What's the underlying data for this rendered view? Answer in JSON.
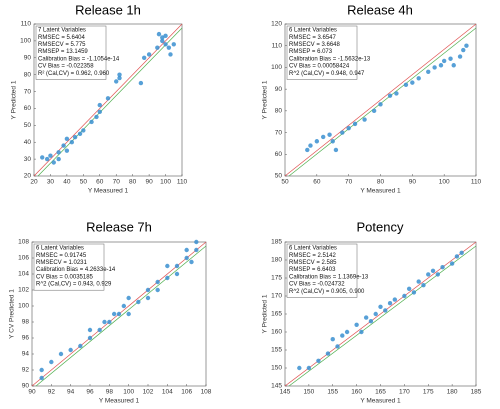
{
  "chart_data": [
    {
      "type": "scatter",
      "title": "Release 1h",
      "x_label": "Y Measured 1",
      "y_label": "Y Predicted 1",
      "color": "#3a8fd0",
      "annotations": [
        "7 Latent Variables",
        "RMSEC = 5.6404",
        "RMSECV = 5.775",
        "RMSEP = 13.1459",
        "Calibration Bias = -1.1054e-14",
        "CV Bias = -0.022358",
        "R² (Cal,CV) = 0.962, 0.960"
      ],
      "x": [
        25,
        28,
        30,
        32,
        35,
        35,
        38,
        40,
        40,
        43,
        45,
        48,
        50,
        55,
        58,
        60,
        60,
        65,
        70,
        72,
        72,
        85,
        87,
        90,
        95,
        96,
        98,
        98,
        100,
        100,
        102,
        103,
        105
      ],
      "values": [
        31,
        30,
        32,
        28,
        34,
        30,
        38,
        35,
        42,
        40,
        43,
        45,
        47,
        52,
        55,
        58,
        62,
        66,
        76,
        78,
        80,
        75,
        90,
        92,
        96,
        104,
        102,
        100,
        103,
        98,
        96,
        92,
        98
      ],
      "xlim": [
        20,
        110
      ],
      "ylim": [
        20,
        110
      ],
      "xticks": [
        20,
        30,
        40,
        50,
        60,
        70,
        80,
        90,
        100,
        110
      ],
      "yticks": [
        20,
        30,
        40,
        50,
        60,
        70,
        80,
        90,
        100,
        110
      ]
    },
    {
      "type": "scatter",
      "title": "Release 4h",
      "x_label": "Y Measured 1",
      "y_label": "Y Predicted 1",
      "color": "#3a8fd0",
      "annotations": [
        "6 Latent Variables",
        "RMSEC = 3.6547",
        "RMSECV = 3.6648",
        "RMSEP = 6.073",
        "Calibration Bias = -1.5632e-13",
        "CV Bias = 0.00058424",
        "R^2 (Cal,CV) = 0.948, 0.947"
      ],
      "x": [
        57,
        58,
        60,
        62,
        64,
        65,
        66,
        68,
        70,
        72,
        75,
        78,
        80,
        83,
        85,
        88,
        90,
        92,
        95,
        97,
        99,
        100,
        102,
        103,
        105,
        106,
        107
      ],
      "values": [
        62,
        64,
        66,
        68,
        69,
        66,
        62,
        70,
        72,
        74,
        76,
        80,
        83,
        87,
        88,
        92,
        93,
        95,
        98,
        100,
        101,
        103,
        104,
        101,
        105,
        108,
        110
      ],
      "xlim": [
        50,
        110
      ],
      "ylim": [
        50,
        120
      ],
      "xticks": [
        50,
        60,
        70,
        80,
        90,
        100,
        110
      ],
      "yticks": [
        50,
        60,
        70,
        80,
        90,
        100,
        110,
        120
      ]
    },
    {
      "type": "scatter",
      "title": "Release 7h",
      "x_label": "Y Measured 1",
      "y_label": "Y CV Predicted 1",
      "color": "#3a8fd0",
      "annotations": [
        "6 Latent Variables",
        "RMSEC = 0.91745",
        "RMSECV = 1.0231",
        "Calibration Bias = 4.2633e-14",
        "CV Bias = 0.0035185",
        "R^2 (Cal,CV) = 0.943, 0.929"
      ],
      "x": [
        91,
        91,
        92,
        93,
        94,
        95,
        96,
        96,
        97,
        97.5,
        98,
        98.5,
        99,
        99.5,
        100,
        100,
        101,
        102,
        102,
        103,
        103,
        104,
        104,
        105,
        105,
        106,
        106,
        107,
        107,
        106.5
      ],
      "values": [
        92,
        91,
        93,
        94,
        94.5,
        95,
        96,
        97,
        97,
        98,
        98,
        99,
        99,
        100,
        99,
        101,
        100.5,
        102,
        101,
        103,
        102,
        103.5,
        105,
        105,
        104,
        106,
        107,
        107,
        108,
        105.5
      ],
      "xlim": [
        90,
        108
      ],
      "ylim": [
        90,
        108
      ],
      "xticks": [
        90,
        92,
        94,
        96,
        98,
        100,
        102,
        104,
        106,
        108
      ],
      "yticks": [
        90,
        92,
        94,
        96,
        98,
        100,
        102,
        104,
        106,
        108
      ]
    },
    {
      "type": "scatter",
      "title": "Potency",
      "x_label": "Y Measured 1",
      "y_label": "Y Predicted 1",
      "color": "#3a8fd0",
      "annotations": [
        "6 Latent Variables",
        "RMSEC = 2.5142",
        "RMSECV = 2.585",
        "RMSEP = 6.6403",
        "Calibration Bias = 1.1369e-13",
        "CV Bias = -0.024732",
        "R^2 (Cal,CV) = 0.905, 0.900"
      ],
      "x": [
        148,
        150,
        152,
        154,
        155,
        156,
        157,
        158,
        160,
        161,
        162,
        163,
        164,
        165,
        166,
        167,
        168,
        170,
        171,
        172,
        173,
        174,
        175,
        176,
        177,
        178,
        180,
        181,
        182
      ],
      "values": [
        150,
        150,
        152,
        154,
        158,
        156,
        159,
        160,
        162,
        160,
        164,
        163,
        165,
        167,
        166,
        168,
        169,
        170,
        172,
        171,
        174,
        173,
        176,
        177,
        176,
        178,
        179,
        181,
        182
      ],
      "xlim": [
        145,
        185
      ],
      "ylim": [
        145,
        185
      ],
      "xticks": [
        145,
        150,
        155,
        160,
        165,
        170,
        175,
        180,
        185
      ],
      "yticks": [
        145,
        150,
        155,
        160,
        165,
        170,
        175,
        180,
        185
      ]
    }
  ]
}
